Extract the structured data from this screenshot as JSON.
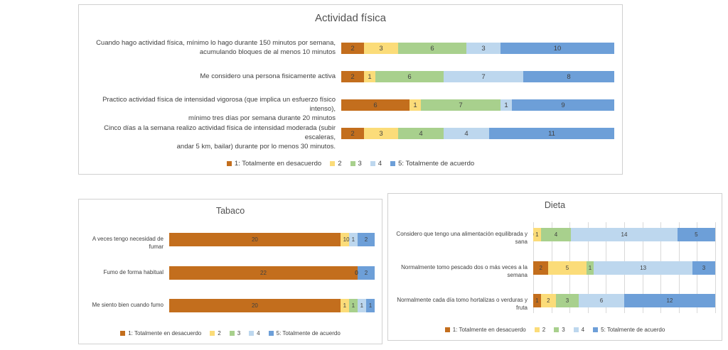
{
  "palette": [
    "#c36e1d",
    "#fbdc79",
    "#a8d08d",
    "#bdd7ee",
    "#6d9fd8"
  ],
  "chart_data": [
    {
      "type": "bar",
      "orientation": "horizontal",
      "stacked": "percent",
      "title": "Actividad física",
      "legend_placement": "bottom",
      "legend": [
        "1: Totalmente en desacuerdo",
        "2",
        "3",
        "4",
        "5: Totalmente de acuerdo"
      ],
      "categories": [
        "Cuando hago actividad física, mínimo lo hago durante 150 minutos por semana, acumulando bloques de al menos 10 minutos",
        "Me considero una persona fisicamente activa",
        "Practico actividad física de intensidad vigorosa (que implica un esfuerzo físico intenso), mínimo tres días por semana durante 20 minutos",
        "Cinco días a la semana realizo actividad física de intensidad moderada (subir escaleras, andar 5 km, bailar) durante por lo menos 30 minutos."
      ],
      "category_lines": [
        [
          "Cuando hago actividad física, mínimo lo hago durante 150 minutos por semana,",
          "acumulando bloques de al menos 10 minutos"
        ],
        [
          "Me considero una persona fisicamente activa"
        ],
        [
          "Practico actividad física de intensidad vigorosa (que implica un esfuerzo físico intenso),",
          "mínimo tres días por semana durante 20 minutos"
        ],
        [
          "Cinco días a la semana realizo actividad física de intensidad moderada (subir escaleras,",
          "andar 5 km, bailar) durante por lo menos 30 minutos."
        ]
      ],
      "values": [
        [
          2,
          3,
          6,
          3,
          10
        ],
        [
          2,
          1,
          6,
          7,
          8
        ],
        [
          6,
          1,
          7,
          1,
          9
        ],
        [
          2,
          3,
          4,
          4,
          11
        ]
      ],
      "grid": false
    },
    {
      "type": "bar",
      "orientation": "horizontal",
      "stacked": "percent",
      "title": "Tabaco",
      "legend_placement": "bottom",
      "legend": [
        "1: Totalmente en desacuerdo",
        "2",
        "3",
        "4",
        "5: Totalmente de acuerdo"
      ],
      "categories": [
        "A veces tengo necesidad de fumar",
        "Fumo de forma habitual",
        "Me siento bien cuando fumo"
      ],
      "category_lines": [
        [
          "A veces tengo necesidad de fumar"
        ],
        [
          "Fumo de forma habitual"
        ],
        [
          "Me siento bien cuando fumo"
        ]
      ],
      "values": [
        [
          20,
          1,
          0,
          1,
          2
        ],
        [
          22,
          0,
          0,
          0,
          2
        ],
        [
          20,
          1,
          1,
          1,
          1
        ]
      ],
      "grid": false
    },
    {
      "type": "bar",
      "orientation": "horizontal",
      "stacked": "percent",
      "title": "Dieta",
      "legend_placement": "bottom",
      "legend": [
        "1: Totalmente en desacuerdo",
        "2",
        "3",
        "4",
        "5: Totalmente de acuerdo"
      ],
      "categories": [
        "Considero que tengo una alimentación equilibrada y sana",
        "Normalmente tomo pescado dos o más veces a la semana",
        "Normalmente cada día tomo hortalizas o verduras y fruta"
      ],
      "category_lines": [
        [
          "Considero que tengo una alimentación equilibrada y sana"
        ],
        [
          "Normalmente tomo pescado dos o más veces a la semana"
        ],
        [
          "Normalmente cada día tomo hortalizas o verduras y fruta"
        ]
      ],
      "values": [
        [
          0,
          1,
          4,
          14,
          5
        ],
        [
          2,
          5,
          1,
          13,
          3
        ],
        [
          1,
          2,
          3,
          6,
          12
        ]
      ],
      "grid": true
    }
  ]
}
